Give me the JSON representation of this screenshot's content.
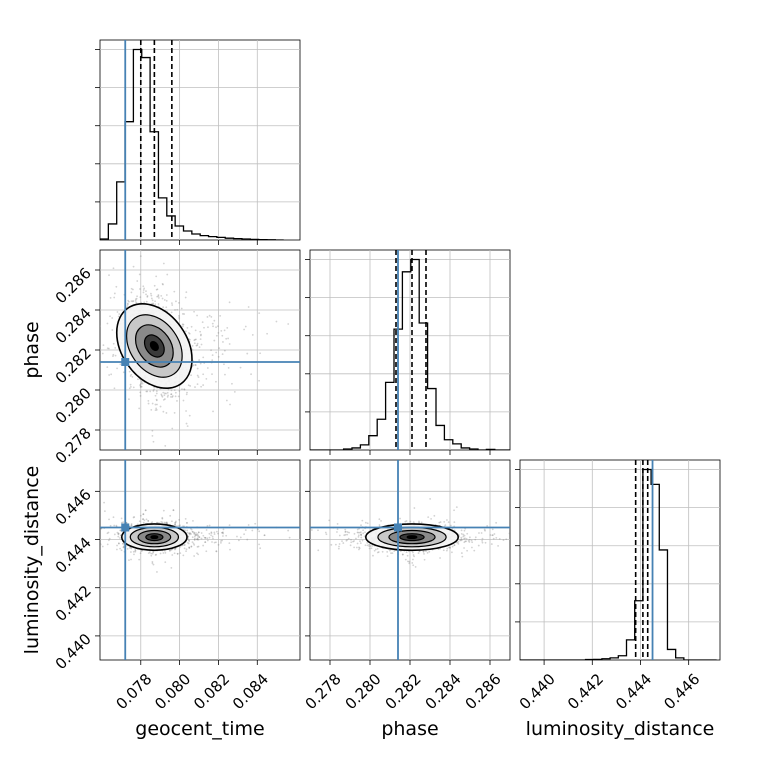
{
  "chart_data": {
    "type": "corner",
    "parameters": [
      "geocent_time",
      "phase",
      "luminosity_distance"
    ],
    "truth": {
      "geocent_time": 0.0772,
      "phase": 0.2814,
      "luminosity_distance": 0.4445
    },
    "quantiles": {
      "geocent_time": [
        0.078,
        0.0787,
        0.0796
      ],
      "phase": [
        0.2813,
        0.2821,
        0.2828
      ],
      "luminosity_distance": [
        0.4438,
        0.4441,
        0.4443
      ]
    },
    "axes": {
      "geocent_time": {
        "xlim": [
          0.0759,
          0.0862
        ],
        "ticks": [
          0.078,
          0.08,
          0.082,
          0.084
        ],
        "tick_labels": [
          "0.078",
          "0.080",
          "0.082",
          "0.084"
        ],
        "xlabel": "geocent_time"
      },
      "phase": {
        "xlim": [
          0.277,
          0.287
        ],
        "ticks": [
          0.278,
          0.28,
          0.282,
          0.284,
          0.286
        ],
        "tick_labels": [
          "0.278",
          "0.280",
          "0.282",
          "0.284",
          "0.286"
        ],
        "xlabel": "phase",
        "ylabel": "phase"
      },
      "luminosity_distance": {
        "xlim": [
          0.439,
          0.4473
        ],
        "ticks": [
          0.44,
          0.442,
          0.444,
          0.446
        ],
        "tick_labels": [
          "0.440",
          "0.442",
          "0.444",
          "0.446"
        ],
        "xlabel": "luminosity_distance",
        "ylabel": "luminosity_distance"
      }
    },
    "histograms": {
      "geocent_time": {
        "edges_start": 0.0759,
        "bin_width": 0.00043,
        "counts": [
          0.005,
          0.08,
          0.29,
          0.59,
          0.95,
          0.91,
          0.54,
          0.21,
          0.12,
          0.07,
          0.045,
          0.03,
          0.022,
          0.017,
          0.013,
          0.009,
          0.007,
          0.005,
          0.003,
          0.002,
          0.001,
          0.0
        ]
      },
      "phase": {
        "edges_start": 0.277,
        "bin_width": 0.00042,
        "counts": [
          0.0,
          0.0,
          0.0,
          0.0,
          0.005,
          0.01,
          0.025,
          0.07,
          0.15,
          0.33,
          0.59,
          0.87,
          0.93,
          0.62,
          0.3,
          0.12,
          0.05,
          0.03,
          0.01,
          0.005,
          0.0,
          0.003,
          0.0,
          0.0
        ]
      },
      "luminosity_distance": {
        "edges_start": 0.439,
        "bin_width": 0.00034,
        "counts": [
          0.0,
          0.0,
          0.0,
          0.0,
          0.0,
          0.0,
          0.0,
          0.0,
          0.002,
          0.003,
          0.006,
          0.01,
          0.02,
          0.095,
          0.28,
          0.9,
          0.83,
          0.52,
          0.05,
          0.01,
          0.0,
          0.0,
          0.0,
          0.0
        ]
      }
    },
    "pairs": [
      {
        "x": "geocent_time",
        "y": "phase",
        "center": [
          0.0787,
          0.2822
        ],
        "sigma": [
          0.0008,
          0.0011
        ],
        "tilt": -0.35
      },
      {
        "x": "geocent_time",
        "y": "luminosity_distance",
        "center": [
          0.0787,
          0.4441
        ],
        "sigma": [
          0.0008,
          0.00026
        ],
        "tilt": 0.0
      },
      {
        "x": "phase",
        "y": "luminosity_distance",
        "center": [
          0.2821,
          0.4441
        ],
        "sigma": [
          0.0011,
          0.00026
        ],
        "tilt": 0.0
      }
    ],
    "colors": {
      "truth": "#4682b4",
      "histogram": "#000000",
      "contour_fill_levels": [
        "#f4f4f4",
        "#c8c8c8",
        "#8a8a8a",
        "#3a3a3a",
        "#000000"
      ],
      "points": "#808080",
      "grid": "#bfbfbf"
    },
    "grid": true
  }
}
